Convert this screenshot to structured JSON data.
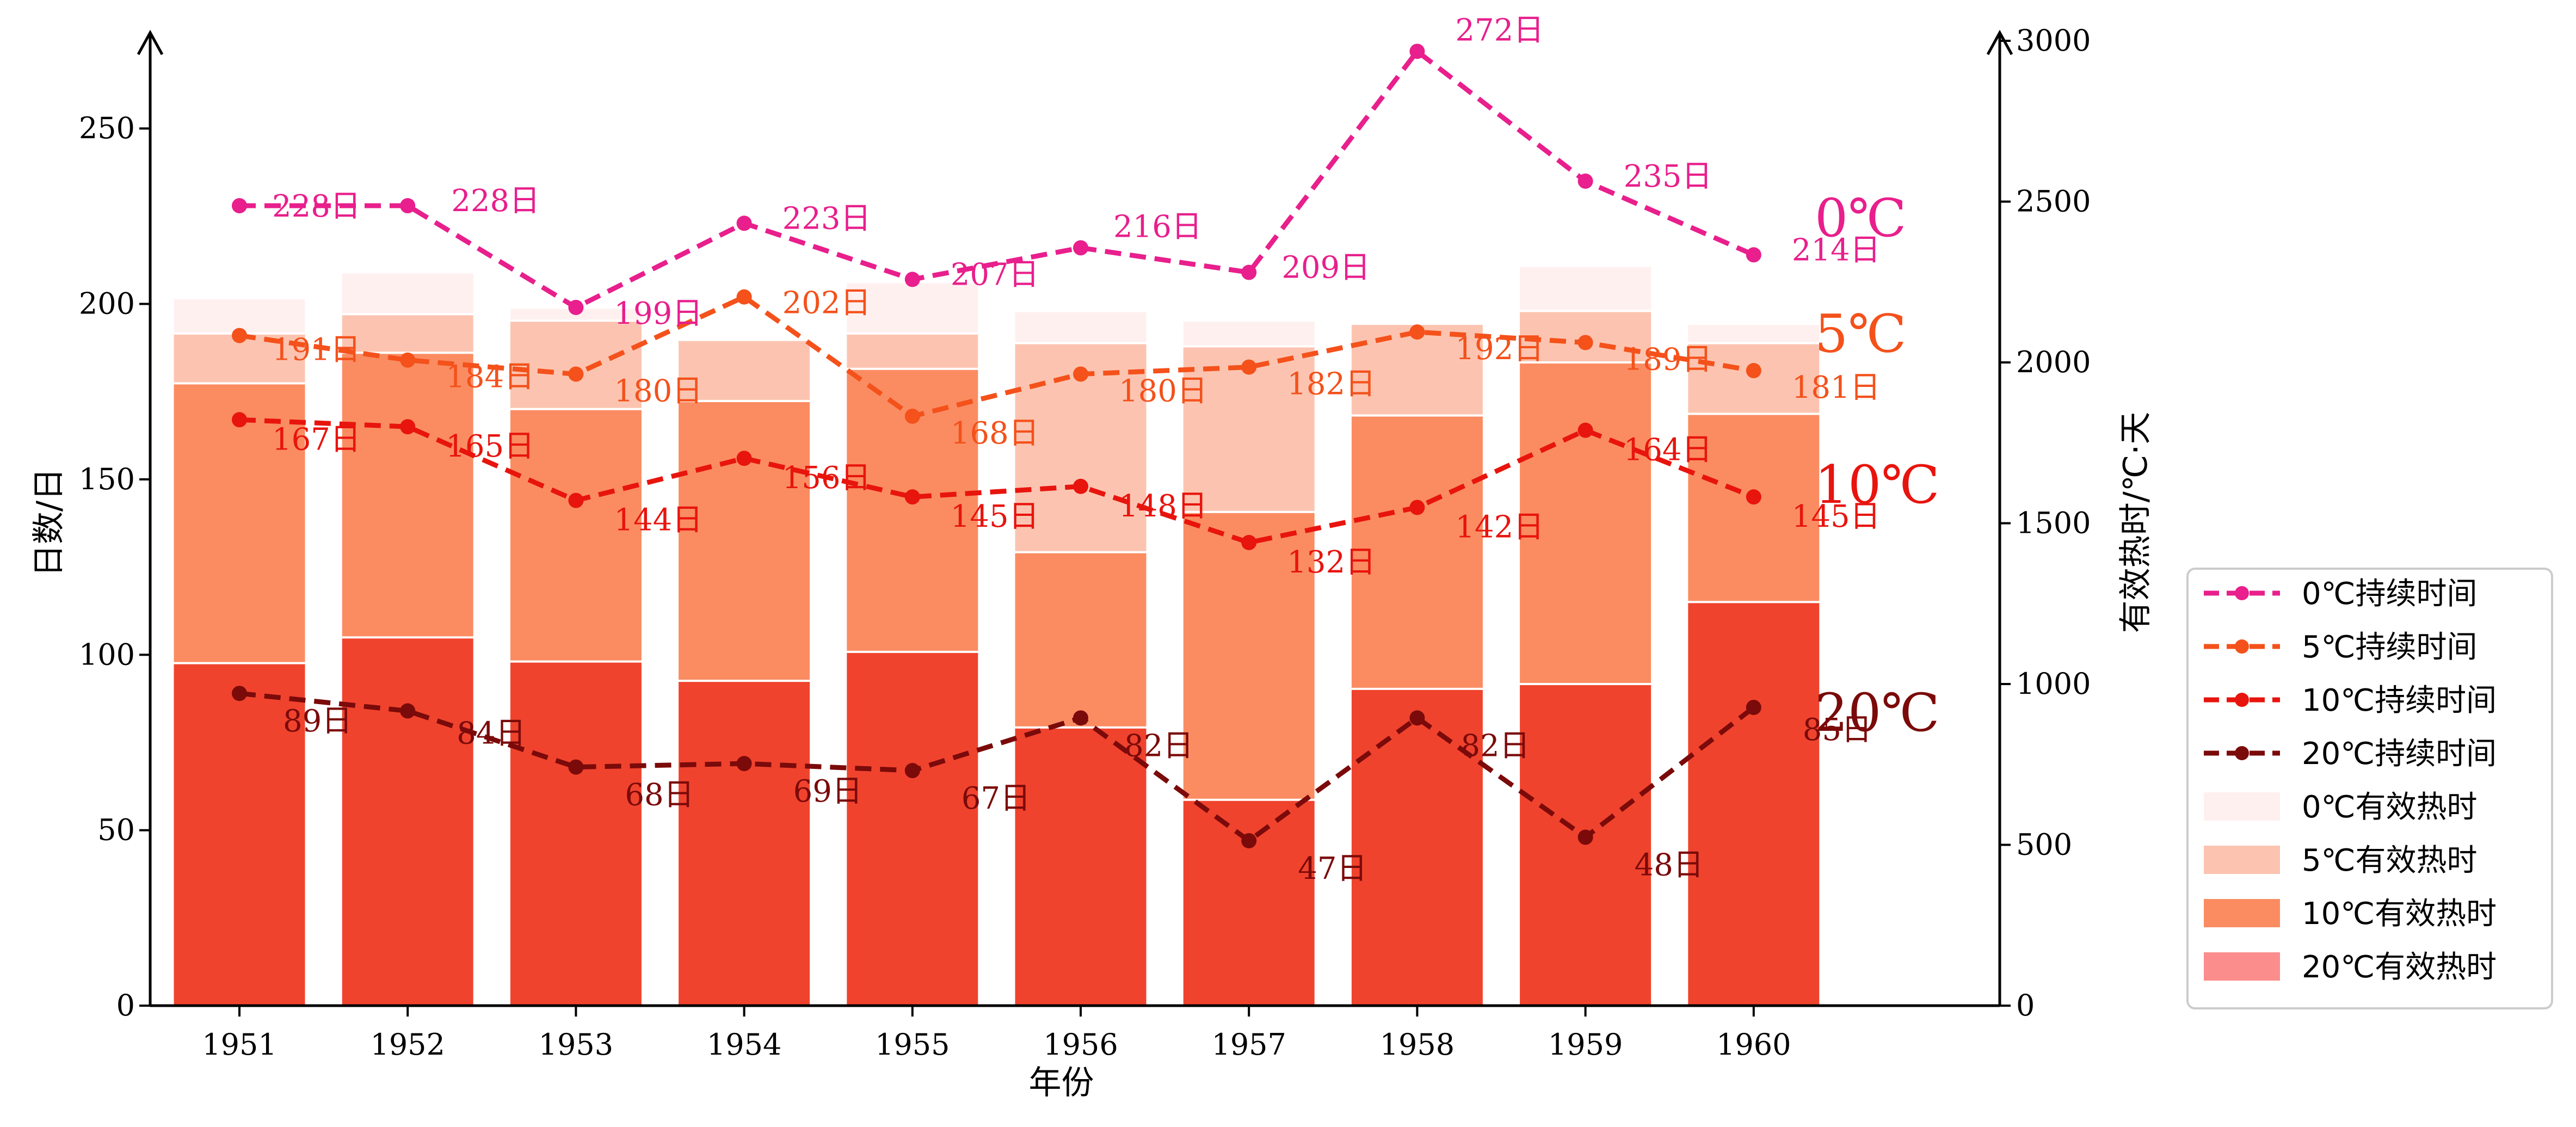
{
  "chart_data": {
    "type": "bar+line",
    "title": "",
    "xlabel": "年份",
    "ylabel_left": "日数/日",
    "ylabel_right": "有效热时/℃·天",
    "categories": [
      "1951",
      "1952",
      "1953",
      "1954",
      "1955",
      "1956",
      "1957",
      "1958",
      "1959",
      "1960"
    ],
    "y_left_lim": [
      0,
      275
    ],
    "y_left_ticks": [
      0,
      50,
      100,
      150,
      200,
      250
    ],
    "y_right_lim": [
      0,
      3000
    ],
    "y_right_ticks": [
      0,
      500,
      1000,
      1500,
      2000,
      2500,
      3000
    ],
    "legend_placement": "right",
    "bars": [
      {
        "name": "0℃有效热时",
        "color": "#fff0f0",
        "values": [
          2200,
          2280,
          2170,
          2070,
          2250,
          2160,
          2130,
          2120,
          2300,
          2120
        ]
      },
      {
        "name": "5℃有效热时",
        "color": "#fcc4b0",
        "values": [
          2090,
          2150,
          2130,
          2070,
          2090,
          2060,
          2050,
          2120,
          2160,
          2060
        ]
      },
      {
        "name": "10℃有效热时",
        "color": "#fb8c62",
        "values": [
          1935,
          2030,
          1855,
          1880,
          1980,
          1410,
          1535,
          1835,
          2000,
          1840
        ]
      },
      {
        "name": "20℃有效热时",
        "color": "#f0432d",
        "values": [
          1065,
          1145,
          1070,
          1010,
          1100,
          865,
          640,
          985,
          1000,
          1255
        ]
      }
    ],
    "legend_bar_swatches": {
      "20℃有效热时": "#fc8d8d"
    },
    "series": [
      {
        "name": "0℃持续时间",
        "color": "#e81f8c",
        "values": [
          228,
          228,
          199,
          223,
          207,
          216,
          209,
          272,
          235,
          214
        ],
        "labels": [
          "228日",
          "228日",
          "199日",
          "223日",
          "207日",
          "216日",
          "209日",
          "272日",
          "235日",
          "214日"
        ]
      },
      {
        "name": "5℃持续时间",
        "color": "#f4511b",
        "values": [
          191,
          184,
          180,
          202,
          168,
          180,
          182,
          192,
          189,
          181
        ],
        "labels": [
          "191日",
          "184日",
          "180日",
          "202日",
          "168日",
          "180日",
          "182日",
          "192日",
          "189日",
          "181日"
        ]
      },
      {
        "name": "10℃持续时间",
        "color": "#e8140e",
        "values": [
          167,
          165,
          144,
          156,
          145,
          148,
          132,
          142,
          164,
          145
        ],
        "labels": [
          "167日",
          "165日",
          "144日",
          "156日",
          "145日",
          "148日",
          "132日",
          "142日",
          "164日",
          "145日"
        ]
      },
      {
        "name": "20℃持续时间",
        "color": "#7b0a0a",
        "values": [
          89,
          84,
          68,
          69,
          67,
          82,
          47,
          82,
          48,
          85
        ],
        "labels": [
          "89日",
          "84日",
          "68日",
          "69日",
          "67日",
          "82日",
          "47日",
          "82日",
          "48日",
          "85日"
        ]
      }
    ],
    "annotations": [
      {
        "text": "0℃",
        "color": "#e81f8c",
        "y": 224
      },
      {
        "text": "5℃",
        "color": "#f4511b",
        "y": 191
      },
      {
        "text": "10℃",
        "color": "#e8140e",
        "y": 148
      },
      {
        "text": "20℃",
        "color": "#7b0a0a",
        "y": 83
      }
    ]
  }
}
